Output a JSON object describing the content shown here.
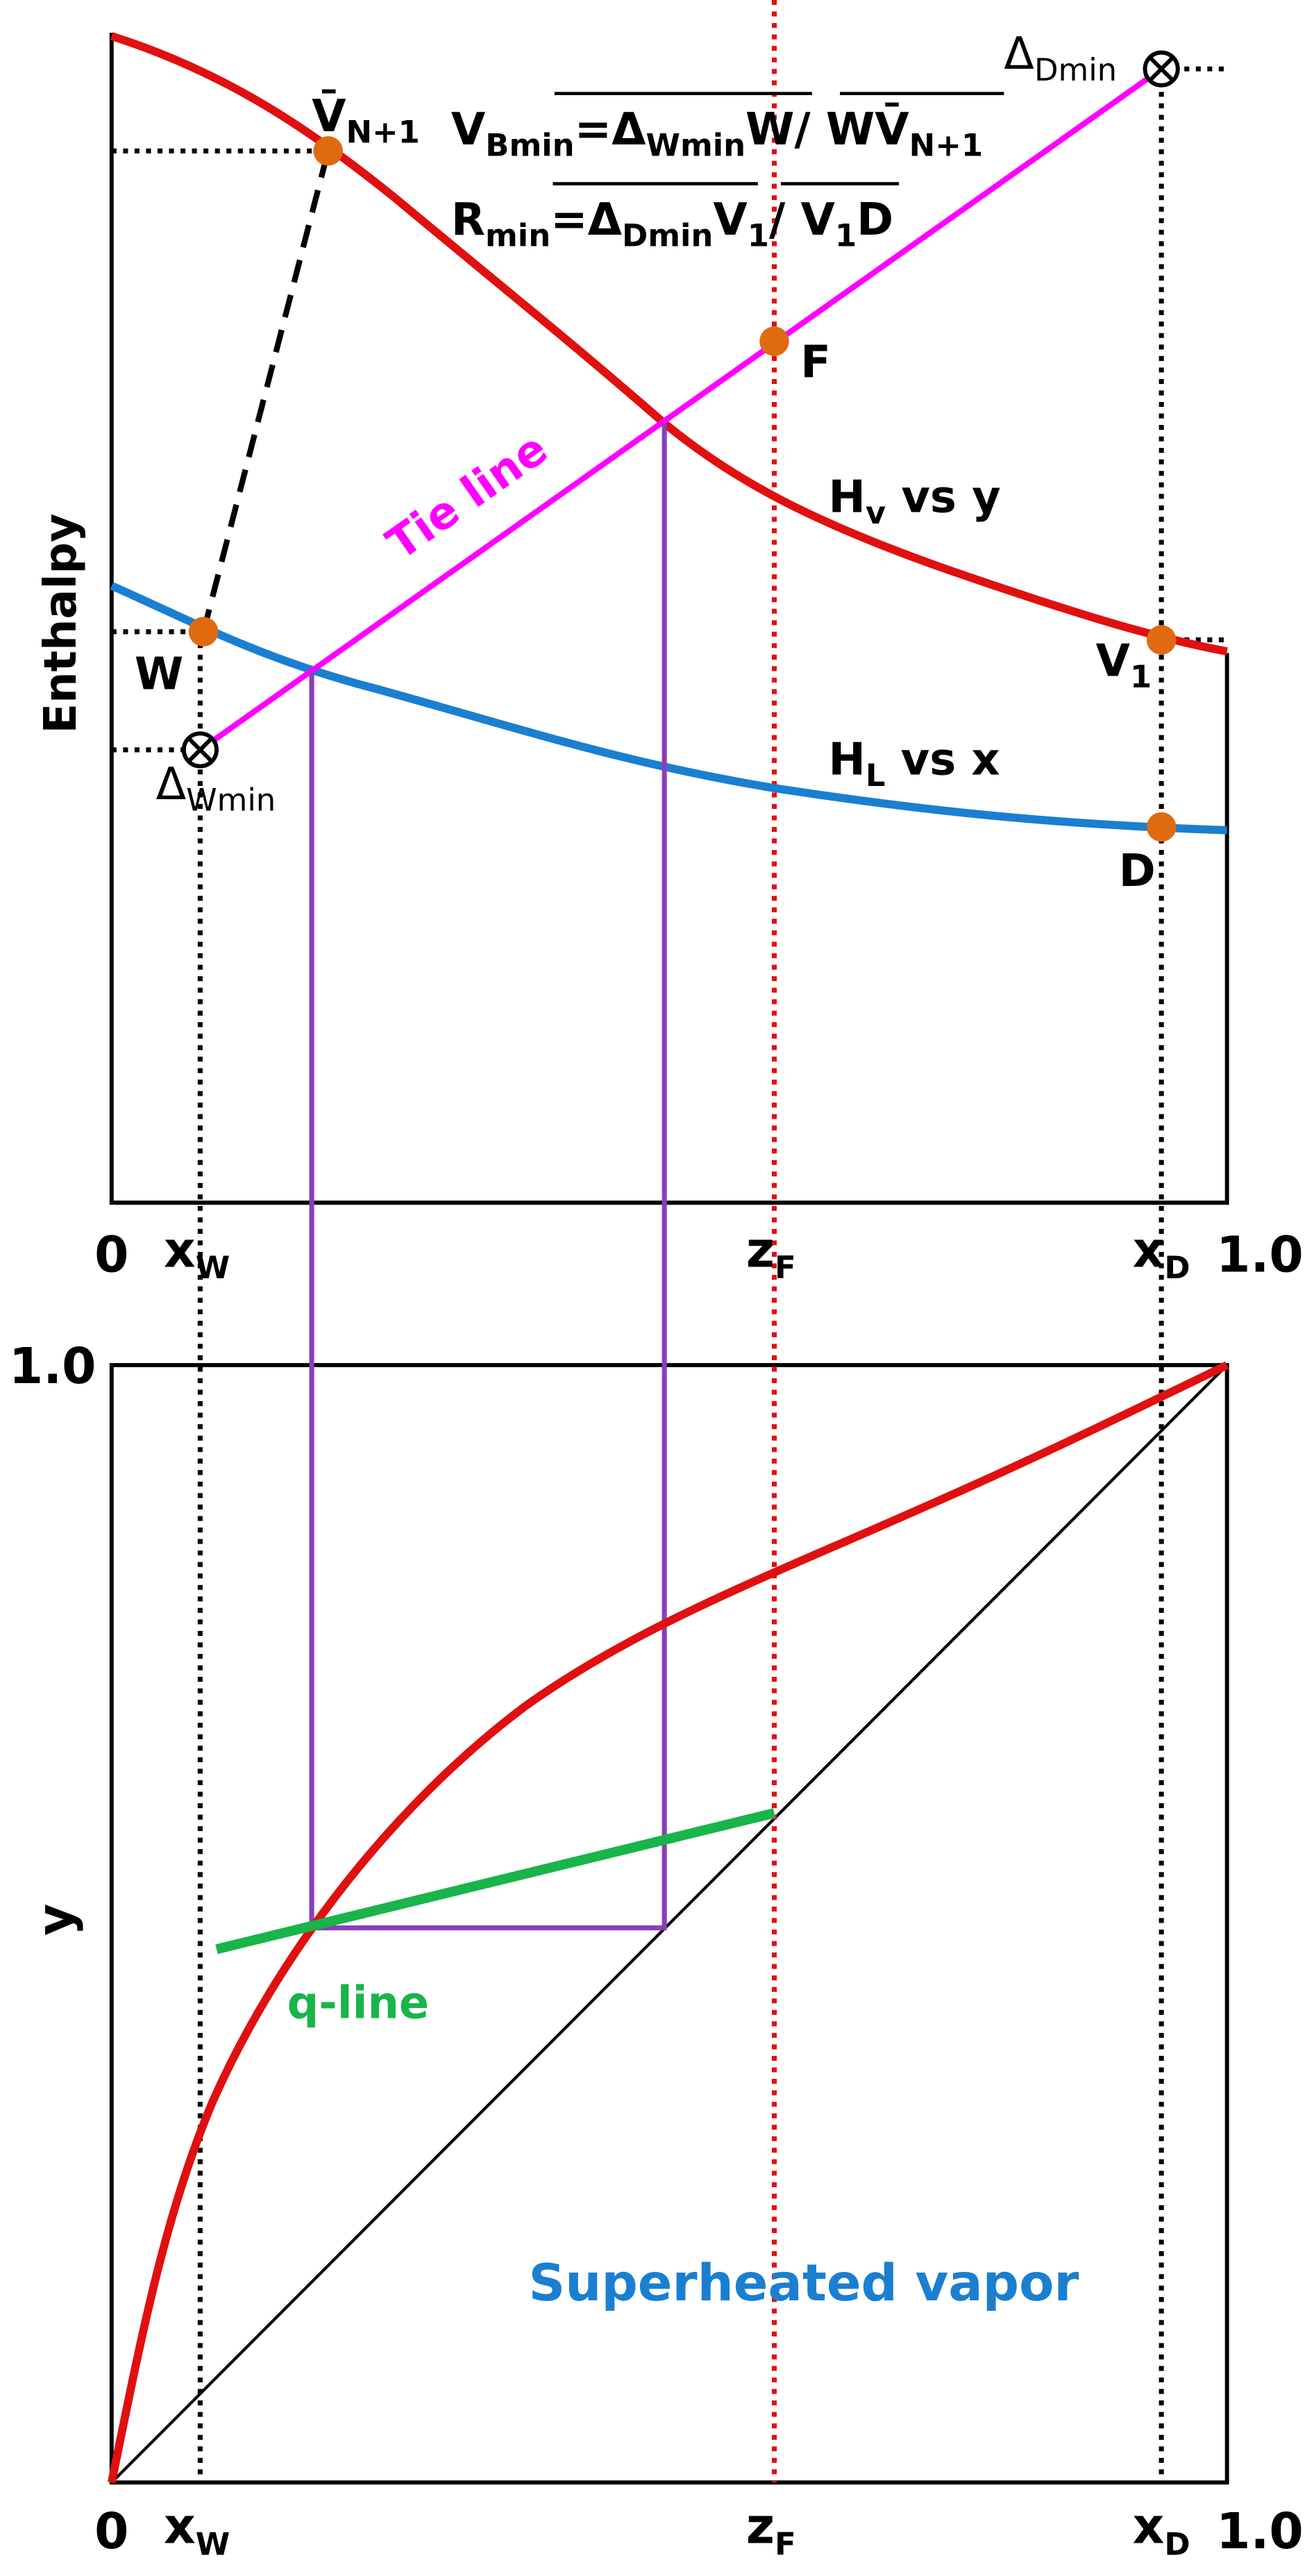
{
  "enthalpy_diagram": {
    "y_axis_label": "Enthalpy",
    "x_labels": {
      "origin": "0",
      "end": "1.0",
      "xw": [
        {
          "text": "x"
        },
        {
          "sub": "W"
        }
      ],
      "zf": [
        {
          "text": "z"
        },
        {
          "sub": "F"
        }
      ],
      "xd": [
        {
          "text": "x"
        },
        {
          "sub": "D"
        }
      ]
    },
    "points": {
      "v_n1": [
        {
          "text": "V̄"
        },
        {
          "sub": "N+1"
        }
      ],
      "w": "W",
      "delta_wmin": [
        {
          "text": "Δ"
        },
        {
          "sub": "Wmin"
        }
      ],
      "delta_dmin": [
        {
          "text": "Δ"
        },
        {
          "sub": "Dmin"
        }
      ],
      "f": "F",
      "v1": [
        {
          "text": "V"
        },
        {
          "sub": "1"
        }
      ],
      "d": "D"
    },
    "curve_labels": {
      "hv": [
        {
          "text": "H"
        },
        {
          "sub": "v"
        },
        {
          "text": " vs y"
        }
      ],
      "hl": [
        {
          "text": "H"
        },
        {
          "sub": "L"
        },
        {
          "text": " vs x"
        }
      ],
      "tie_line": "Tie line"
    },
    "equations": [
      [
        {
          "text": "V"
        },
        {
          "sub": "Bmin"
        },
        {
          "text": "="
        },
        {
          "text": "Δ"
        },
        {
          "sub": "Wmin"
        },
        {
          "text": "W/ WV̄"
        },
        {
          "sub": "N+1"
        }
      ],
      [
        {
          "text": "R"
        },
        {
          "sub": "min"
        },
        {
          "text": "="
        },
        {
          "text": "Δ"
        },
        {
          "sub": "Dmin"
        },
        {
          "text": "V"
        },
        {
          "sub": "1"
        },
        {
          "text": "/ V"
        },
        {
          "sub": "1"
        },
        {
          "text": "D"
        }
      ]
    ]
  },
  "xy_diagram": {
    "y_axis_label": "y",
    "y_top_label": "1.0",
    "x_labels": {
      "origin": "0",
      "end": "1.0",
      "xw": [
        {
          "text": "x"
        },
        {
          "sub": "W"
        }
      ],
      "zf": [
        {
          "text": "z"
        },
        {
          "sub": "F"
        }
      ],
      "xd": [
        {
          "text": "x"
        },
        {
          "sub": "D"
        }
      ]
    },
    "q_line_label": "q-line",
    "region_label": "Superheated vapor"
  }
}
